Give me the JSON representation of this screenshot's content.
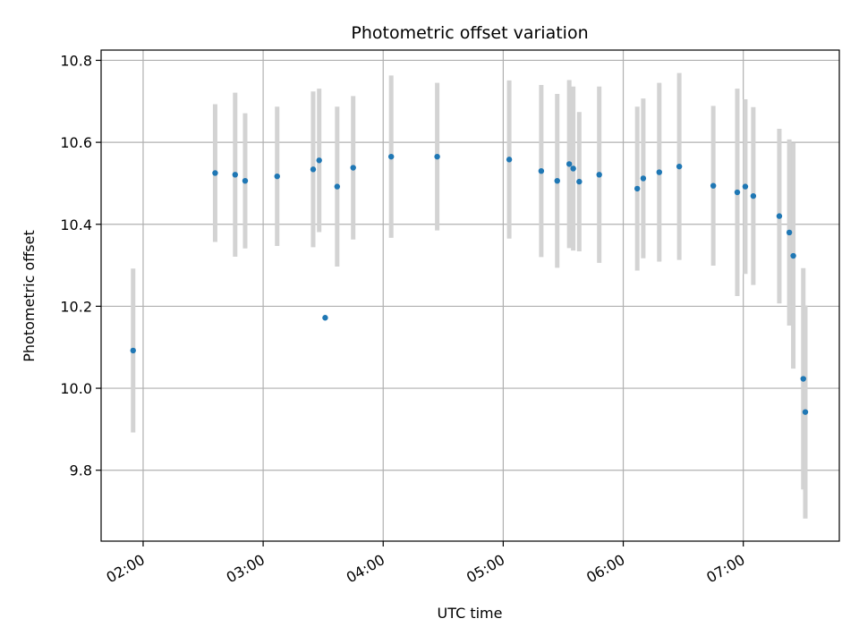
{
  "chart_data": {
    "type": "scatter",
    "title": "Photometric offset variation",
    "xlabel": "UTC time",
    "ylabel": "Photometric offset",
    "x_unit": "UTC time of day",
    "xlim": [
      "01:39",
      "07:48"
    ],
    "ylim": [
      9.627,
      10.825
    ],
    "x_ticks": [
      "02:00",
      "03:00",
      "04:00",
      "05:00",
      "06:00",
      "07:00"
    ],
    "y_ticks": [
      9.8,
      10.0,
      10.2,
      10.4,
      10.6,
      10.8
    ],
    "y_tick_labels": [
      "9.8",
      "10.0",
      "10.2",
      "10.4",
      "10.6",
      "10.8"
    ],
    "grid": true,
    "legend": "none",
    "colors": {
      "point": "#1f77b4",
      "errorbar": "#d3d3d3",
      "grid": "#b0b0b0"
    },
    "series": [
      {
        "points": [
          {
            "x": "01:55",
            "y": 10.092,
            "err": 0.2
          },
          {
            "x": "02:36",
            "y": 10.525,
            "err": 0.168
          },
          {
            "x": "02:46",
            "y": 10.521,
            "err": 0.2
          },
          {
            "x": "02:51",
            "y": 10.506,
            "err": 0.165
          },
          {
            "x": "03:07",
            "y": 10.517,
            "err": 0.17
          },
          {
            "x": "03:25",
            "y": 10.534,
            "err": 0.19
          },
          {
            "x": "03:28",
            "y": 10.556,
            "err": 0.175
          },
          {
            "x": "03:31",
            "y": 10.172,
            "err": 0.0
          },
          {
            "x": "03:37",
            "y": 10.492,
            "err": 0.195
          },
          {
            "x": "03:45",
            "y": 10.538,
            "err": 0.175
          },
          {
            "x": "04:04",
            "y": 10.565,
            "err": 0.198
          },
          {
            "x": "04:27",
            "y": 10.565,
            "err": 0.18
          },
          {
            "x": "05:03",
            "y": 10.558,
            "err": 0.193
          },
          {
            "x": "05:19",
            "y": 10.53,
            "err": 0.21
          },
          {
            "x": "05:27",
            "y": 10.506,
            "err": 0.212
          },
          {
            "x": "05:33",
            "y": 10.547,
            "err": 0.205
          },
          {
            "x": "05:35",
            "y": 10.536,
            "err": 0.2
          },
          {
            "x": "05:38",
            "y": 10.504,
            "err": 0.17
          },
          {
            "x": "05:48",
            "y": 10.521,
            "err": 0.215
          },
          {
            "x": "06:07",
            "y": 10.487,
            "err": 0.2
          },
          {
            "x": "06:10",
            "y": 10.512,
            "err": 0.195
          },
          {
            "x": "06:18",
            "y": 10.527,
            "err": 0.218
          },
          {
            "x": "06:28",
            "y": 10.541,
            "err": 0.228
          },
          {
            "x": "06:45",
            "y": 10.494,
            "err": 0.195
          },
          {
            "x": "06:57",
            "y": 10.478,
            "err": 0.253
          },
          {
            "x": "07:01",
            "y": 10.492,
            "err": 0.213
          },
          {
            "x": "07:05",
            "y": 10.469,
            "err": 0.217
          },
          {
            "x": "07:18",
            "y": 10.42,
            "err": 0.213
          },
          {
            "x": "07:23",
            "y": 10.38,
            "err": 0.227
          },
          {
            "x": "07:25",
            "y": 10.323,
            "err": 0.275
          },
          {
            "x": "07:30",
            "y": 10.023,
            "err": 0.27
          },
          {
            "x": "07:31",
            "y": 9.942,
            "err": 0.26
          }
        ]
      }
    ]
  }
}
